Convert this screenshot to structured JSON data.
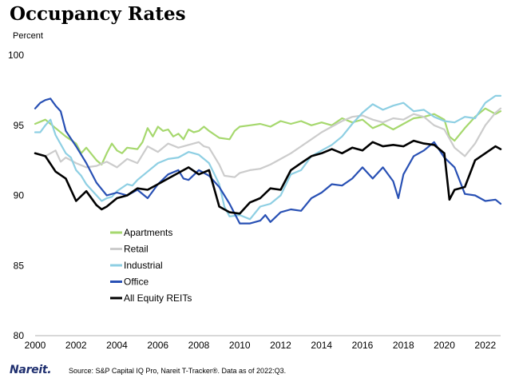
{
  "chart_data": {
    "type": "line",
    "title": "Occupancy Rates",
    "ylabel": "Percent",
    "xlabel": "",
    "xlim": [
      2000,
      2022.75
    ],
    "ylim": [
      80,
      100
    ],
    "xticks": [
      "2000",
      "2002",
      "2004",
      "2006",
      "2008",
      "2010",
      "2012",
      "2014",
      "2016",
      "2018",
      "2020",
      "2022"
    ],
    "yticks": [
      "80",
      "85",
      "90",
      "95",
      "100"
    ],
    "legend_position": "center-left",
    "series": [
      {
        "name": "Apartments",
        "color": "#a6d86e",
        "width": 2.2,
        "points": [
          [
            2000,
            95.1
          ],
          [
            2000.5,
            95.4
          ],
          [
            2001,
            94.8
          ],
          [
            2001.5,
            94.2
          ],
          [
            2002,
            93.7
          ],
          [
            2002.25,
            93.0
          ],
          [
            2002.5,
            93.4
          ],
          [
            2003,
            92.5
          ],
          [
            2003.25,
            92.2
          ],
          [
            2003.5,
            93.0
          ],
          [
            2003.75,
            93.7
          ],
          [
            2004,
            93.2
          ],
          [
            2004.25,
            93.0
          ],
          [
            2004.5,
            93.4
          ],
          [
            2005,
            93.3
          ],
          [
            2005.25,
            93.8
          ],
          [
            2005.5,
            94.8
          ],
          [
            2005.75,
            94.2
          ],
          [
            2006,
            94.9
          ],
          [
            2006.25,
            94.6
          ],
          [
            2006.5,
            94.7
          ],
          [
            2006.75,
            94.2
          ],
          [
            2007,
            94.4
          ],
          [
            2007.25,
            94.0
          ],
          [
            2007.5,
            94.7
          ],
          [
            2007.75,
            94.5
          ],
          [
            2008,
            94.6
          ],
          [
            2008.25,
            94.9
          ],
          [
            2008.5,
            94.6
          ],
          [
            2009,
            94.1
          ],
          [
            2009.5,
            94.0
          ],
          [
            2009.75,
            94.6
          ],
          [
            2010,
            94.9
          ],
          [
            2010.5,
            95.0
          ],
          [
            2011,
            95.1
          ],
          [
            2011.5,
            94.9
          ],
          [
            2012,
            95.3
          ],
          [
            2012.5,
            95.1
          ],
          [
            2013,
            95.3
          ],
          [
            2013.5,
            95.0
          ],
          [
            2014,
            95.2
          ],
          [
            2014.5,
            95.0
          ],
          [
            2015,
            95.5
          ],
          [
            2015.5,
            95.2
          ],
          [
            2016,
            95.4
          ],
          [
            2016.5,
            94.8
          ],
          [
            2017,
            95.1
          ],
          [
            2017.5,
            94.7
          ],
          [
            2018,
            95.1
          ],
          [
            2018.5,
            95.5
          ],
          [
            2019,
            95.6
          ],
          [
            2019.5,
            95.8
          ],
          [
            2020,
            95.4
          ],
          [
            2020.25,
            94.2
          ],
          [
            2020.5,
            93.9
          ],
          [
            2021,
            94.8
          ],
          [
            2021.5,
            95.6
          ],
          [
            2022,
            96.2
          ],
          [
            2022.5,
            95.8
          ],
          [
            2022.75,
            96.0
          ]
        ]
      },
      {
        "name": "Retail",
        "color": "#cccccc",
        "width": 2.2,
        "points": [
          [
            2000,
            93.0
          ],
          [
            2000.5,
            92.8
          ],
          [
            2001,
            93.2
          ],
          [
            2001.25,
            92.4
          ],
          [
            2001.5,
            92.7
          ],
          [
            2002,
            92.3
          ],
          [
            2002.5,
            92.0
          ],
          [
            2003,
            92.1
          ],
          [
            2003.5,
            92.4
          ],
          [
            2004,
            92.0
          ],
          [
            2004.5,
            92.6
          ],
          [
            2005,
            92.3
          ],
          [
            2005.5,
            93.5
          ],
          [
            2006,
            93.1
          ],
          [
            2006.5,
            93.7
          ],
          [
            2007,
            93.4
          ],
          [
            2007.5,
            93.6
          ],
          [
            2008,
            93.8
          ],
          [
            2008.25,
            93.5
          ],
          [
            2008.5,
            93.4
          ],
          [
            2009,
            92.2
          ],
          [
            2009.25,
            91.4
          ],
          [
            2009.75,
            91.3
          ],
          [
            2010,
            91.6
          ],
          [
            2010.5,
            91.8
          ],
          [
            2011,
            91.9
          ],
          [
            2011.5,
            92.2
          ],
          [
            2012,
            92.6
          ],
          [
            2012.5,
            93.0
          ],
          [
            2013,
            93.5
          ],
          [
            2013.5,
            94.0
          ],
          [
            2014,
            94.5
          ],
          [
            2014.5,
            94.9
          ],
          [
            2015,
            95.3
          ],
          [
            2015.5,
            95.6
          ],
          [
            2016,
            95.7
          ],
          [
            2016.5,
            95.4
          ],
          [
            2017,
            95.2
          ],
          [
            2017.5,
            95.5
          ],
          [
            2018,
            95.4
          ],
          [
            2018.5,
            95.8
          ],
          [
            2019,
            95.6
          ],
          [
            2019.5,
            95.0
          ],
          [
            2020,
            94.7
          ],
          [
            2020.5,
            93.4
          ],
          [
            2021,
            92.8
          ],
          [
            2021.5,
            93.7
          ],
          [
            2022,
            95.0
          ],
          [
            2022.5,
            95.9
          ],
          [
            2022.75,
            96.2
          ]
        ]
      },
      {
        "name": "Industrial",
        "color": "#8ecfe3",
        "width": 2.2,
        "points": [
          [
            2000,
            94.5
          ],
          [
            2000.25,
            94.5
          ],
          [
            2000.5,
            95.0
          ],
          [
            2000.75,
            95.4
          ],
          [
            2001,
            94.3
          ],
          [
            2001.5,
            93.0
          ],
          [
            2001.75,
            92.7
          ],
          [
            2002,
            91.8
          ],
          [
            2002.25,
            91.4
          ],
          [
            2002.5,
            90.8
          ],
          [
            2003,
            90.0
          ],
          [
            2003.25,
            89.6
          ],
          [
            2003.5,
            89.8
          ],
          [
            2003.75,
            89.9
          ],
          [
            2004,
            90.3
          ],
          [
            2004.5,
            90.8
          ],
          [
            2004.75,
            90.7
          ],
          [
            2005,
            91.1
          ],
          [
            2005.5,
            91.7
          ],
          [
            2006,
            92.3
          ],
          [
            2006.5,
            92.6
          ],
          [
            2007,
            92.7
          ],
          [
            2007.5,
            93.1
          ],
          [
            2008,
            92.9
          ],
          [
            2008.5,
            92.3
          ],
          [
            2009,
            90.8
          ],
          [
            2009.25,
            89.2
          ],
          [
            2009.5,
            88.5
          ],
          [
            2010,
            88.6
          ],
          [
            2010.5,
            88.3
          ],
          [
            2011,
            89.2
          ],
          [
            2011.5,
            89.4
          ],
          [
            2012,
            90.0
          ],
          [
            2012.5,
            91.5
          ],
          [
            2013,
            91.8
          ],
          [
            2013.5,
            92.8
          ],
          [
            2014,
            93.2
          ],
          [
            2014.5,
            93.6
          ],
          [
            2015,
            94.2
          ],
          [
            2015.5,
            95.1
          ],
          [
            2016,
            95.9
          ],
          [
            2016.5,
            96.5
          ],
          [
            2017,
            96.1
          ],
          [
            2017.5,
            96.4
          ],
          [
            2018,
            96.6
          ],
          [
            2018.5,
            96.0
          ],
          [
            2019,
            96.1
          ],
          [
            2019.5,
            95.6
          ],
          [
            2020,
            95.3
          ],
          [
            2020.5,
            95.2
          ],
          [
            2021,
            95.6
          ],
          [
            2021.5,
            95.5
          ],
          [
            2022,
            96.6
          ],
          [
            2022.5,
            97.1
          ],
          [
            2022.75,
            97.1
          ]
        ]
      },
      {
        "name": "Office",
        "color": "#2850b4",
        "width": 2.2,
        "points": [
          [
            2000,
            96.2
          ],
          [
            2000.25,
            96.6
          ],
          [
            2000.5,
            96.8
          ],
          [
            2000.75,
            96.9
          ],
          [
            2001,
            96.4
          ],
          [
            2001.25,
            96.0
          ],
          [
            2001.5,
            94.6
          ],
          [
            2002,
            93.5
          ],
          [
            2002.5,
            92.3
          ],
          [
            2003,
            90.9
          ],
          [
            2003.5,
            90.0
          ],
          [
            2004,
            90.2
          ],
          [
            2004.5,
            90.0
          ],
          [
            2005,
            90.4
          ],
          [
            2005.5,
            89.8
          ],
          [
            2006,
            90.8
          ],
          [
            2006.5,
            91.5
          ],
          [
            2007,
            91.8
          ],
          [
            2007.25,
            91.2
          ],
          [
            2007.5,
            91.1
          ],
          [
            2008,
            91.8
          ],
          [
            2008.5,
            91.4
          ],
          [
            2009,
            90.6
          ],
          [
            2009.5,
            89.4
          ],
          [
            2010,
            88.0
          ],
          [
            2010.5,
            88.0
          ],
          [
            2011,
            88.2
          ],
          [
            2011.25,
            88.6
          ],
          [
            2011.5,
            88.1
          ],
          [
            2012,
            88.8
          ],
          [
            2012.5,
            89.0
          ],
          [
            2013,
            88.9
          ],
          [
            2013.5,
            89.8
          ],
          [
            2014,
            90.2
          ],
          [
            2014.5,
            90.8
          ],
          [
            2015,
            90.7
          ],
          [
            2015.5,
            91.2
          ],
          [
            2016,
            92.0
          ],
          [
            2016.5,
            91.2
          ],
          [
            2017,
            92.0
          ],
          [
            2017.5,
            91.0
          ],
          [
            2017.75,
            89.8
          ],
          [
            2018,
            91.5
          ],
          [
            2018.5,
            92.8
          ],
          [
            2019,
            93.2
          ],
          [
            2019.5,
            93.8
          ],
          [
            2020,
            92.7
          ],
          [
            2020.5,
            92.0
          ],
          [
            2021,
            90.1
          ],
          [
            2021.5,
            90.0
          ],
          [
            2022,
            89.6
          ],
          [
            2022.5,
            89.7
          ],
          [
            2022.75,
            89.4
          ]
        ]
      },
      {
        "name": "All Equity REITs",
        "color": "#000000",
        "width": 2.6,
        "points": [
          [
            2000,
            93.0
          ],
          [
            2000.5,
            92.8
          ],
          [
            2001,
            91.7
          ],
          [
            2001.5,
            91.2
          ],
          [
            2002,
            89.6
          ],
          [
            2002.5,
            90.3
          ],
          [
            2003,
            89.3
          ],
          [
            2003.25,
            89.0
          ],
          [
            2003.5,
            89.2
          ],
          [
            2004,
            89.8
          ],
          [
            2004.5,
            90.0
          ],
          [
            2005,
            90.5
          ],
          [
            2005.5,
            90.4
          ],
          [
            2006,
            90.8
          ],
          [
            2006.5,
            91.2
          ],
          [
            2007,
            91.6
          ],
          [
            2007.5,
            92.0
          ],
          [
            2008,
            91.5
          ],
          [
            2008.5,
            91.8
          ],
          [
            2009,
            89.2
          ],
          [
            2009.5,
            88.8
          ],
          [
            2010,
            88.7
          ],
          [
            2010.5,
            89.5
          ],
          [
            2011,
            89.8
          ],
          [
            2011.5,
            90.5
          ],
          [
            2012,
            90.4
          ],
          [
            2012.5,
            91.8
          ],
          [
            2013,
            92.3
          ],
          [
            2013.5,
            92.8
          ],
          [
            2014,
            93.0
          ],
          [
            2014.5,
            93.3
          ],
          [
            2015,
            93.0
          ],
          [
            2015.5,
            93.4
          ],
          [
            2016,
            93.2
          ],
          [
            2016.5,
            93.8
          ],
          [
            2017,
            93.5
          ],
          [
            2017.5,
            93.6
          ],
          [
            2018,
            93.5
          ],
          [
            2018.5,
            93.9
          ],
          [
            2019,
            93.7
          ],
          [
            2019.5,
            93.6
          ],
          [
            2020,
            93.0
          ],
          [
            2020.25,
            89.7
          ],
          [
            2020.5,
            90.4
          ],
          [
            2021,
            90.6
          ],
          [
            2021.5,
            92.5
          ],
          [
            2022,
            93.0
          ],
          [
            2022.5,
            93.5
          ],
          [
            2022.75,
            93.3
          ]
        ]
      }
    ],
    "source": "Source: S&P Capital IQ Pro, Nareit T-Tracker®. Data as of 2022:Q3."
  },
  "footer": {
    "logo_text": "Nareit."
  }
}
